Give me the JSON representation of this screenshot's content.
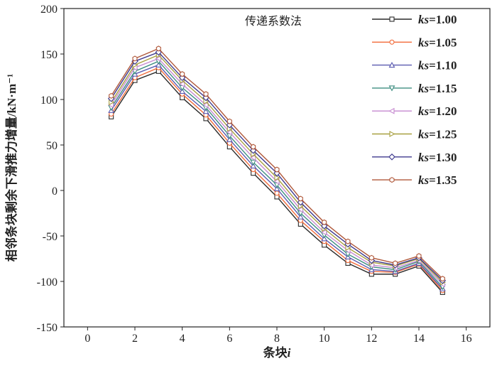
{
  "chart_data": {
    "type": "line",
    "title": "传递系数法",
    "xlabel": "条块",
    "xlabel_var": "i",
    "ylabel": "相邻条块剩余下滑推力增量/kN·m⁻¹",
    "xlim": [
      -1,
      17
    ],
    "ylim": [
      -150,
      200
    ],
    "xticks": [
      0,
      2,
      4,
      6,
      8,
      10,
      12,
      14,
      16
    ],
    "yticks": [
      -150,
      -100,
      -50,
      0,
      50,
      100,
      150,
      200
    ],
    "grid": false,
    "legend_position": "top-right",
    "x": [
      1,
      2,
      3,
      4,
      5,
      6,
      7,
      8,
      9,
      10,
      11,
      12,
      13,
      14,
      15
    ],
    "series": [
      {
        "name_var": "ks",
        "name": "=1.00",
        "color": "#2a2a2a",
        "marker": "square",
        "values": [
          81,
          121,
          131,
          102,
          79,
          48,
          19,
          -7,
          -37,
          -60,
          -80,
          -92,
          -92,
          -83,
          -112
        ]
      },
      {
        "name_var": "ks",
        "name": "=1.05",
        "color": "#f26b3a",
        "marker": "circle",
        "values": [
          84,
          124,
          135,
          106,
          83,
          52,
          23,
          -3,
          -33,
          -56,
          -77,
          -89,
          -90,
          -81,
          -110
        ]
      },
      {
        "name_var": "ks",
        "name": "=1.10",
        "color": "#5a5ab0",
        "marker": "triangle-up",
        "values": [
          88,
          128,
          138,
          109,
          87,
          56,
          27,
          2,
          -29,
          -53,
          -73,
          -87,
          -89,
          -80,
          -108
        ]
      },
      {
        "name_var": "ks",
        "name": "=1.15",
        "color": "#3e8e80",
        "marker": "triangle-down",
        "values": [
          91,
          131,
          142,
          113,
          91,
          60,
          31,
          6,
          -25,
          -49,
          -70,
          -84,
          -87,
          -78,
          -106
        ]
      },
      {
        "name_var": "ks",
        "name": "=1.20",
        "color": "#c68ad0",
        "marker": "triangle-left",
        "values": [
          94,
          135,
          145,
          117,
          94,
          64,
          36,
          10,
          -21,
          -46,
          -66,
          -82,
          -85,
          -77,
          -103
        ]
      },
      {
        "name_var": "ks",
        "name": "=1.25",
        "color": "#a8a040",
        "marker": "triangle-right",
        "values": [
          97,
          138,
          149,
          121,
          98,
          68,
          40,
          14,
          -17,
          -42,
          -63,
          -79,
          -83,
          -75,
          -101
        ]
      },
      {
        "name_var": "ks",
        "name": "=1.30",
        "color": "#3f3a8e",
        "marker": "diamond",
        "values": [
          101,
          142,
          152,
          124,
          102,
          72,
          44,
          19,
          -13,
          -39,
          -59,
          -77,
          -82,
          -74,
          -99
        ]
      },
      {
        "name_var": "ks",
        "name": "=1.35",
        "color": "#b0583a",
        "marker": "hexagon",
        "values": [
          104,
          145,
          156,
          128,
          106,
          76,
          48,
          23,
          -9,
          -35,
          -56,
          -74,
          -80,
          -72,
          -97
        ]
      }
    ]
  }
}
